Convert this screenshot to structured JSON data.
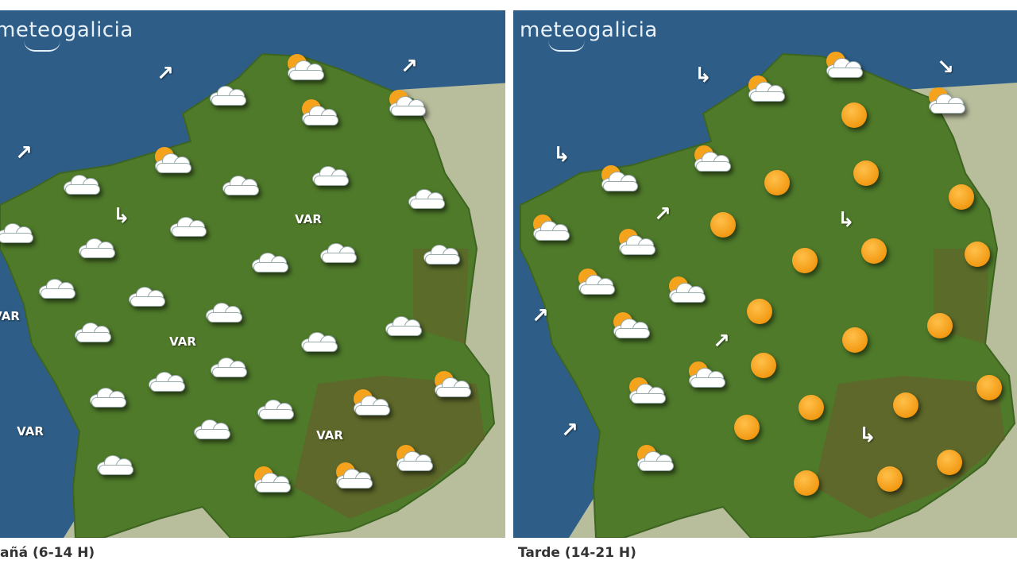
{
  "panels": [
    {
      "logo": "meteogalicia",
      "caption": "añá (6-14 H)",
      "icons": [
        "partly-cloudy",
        "partly-cloudy",
        "partly-cloudy",
        "partly-cloudy",
        "partly-cloudy",
        "partly-cloudy",
        "partly-cloudy",
        "partly-cloudy",
        "partly-cloudy",
        "cloudy",
        "cloudy",
        "cloudy",
        "cloudy",
        "cloudy",
        "cloudy",
        "cloudy",
        "cloudy",
        "cloudy",
        "cloudy",
        "cloudy",
        "cloudy",
        "cloudy",
        "cloudy",
        "cloudy",
        "cloudy",
        "cloudy",
        "cloudy",
        "cloudy",
        "cloudy",
        "cloudy",
        "cloudy",
        "cloudy"
      ],
      "winds": [
        "northeast",
        "northeast",
        "northeast",
        "east"
      ],
      "var_labels": [
        "VAR",
        "VAR",
        "VAR",
        "VAR",
        "VAR"
      ]
    },
    {
      "logo": "meteogalicia",
      "caption": "Tarde (14-21 H)",
      "icons": [
        "sunny",
        "sunny",
        "sunny",
        "sunny",
        "sunny",
        "sunny",
        "sunny",
        "sunny",
        "sunny",
        "sunny",
        "sunny",
        "sunny",
        "sunny",
        "sunny",
        "sunny",
        "sunny",
        "sunny",
        "sunny",
        "sunny",
        "partly-cloudy",
        "partly-cloudy",
        "partly-cloudy",
        "partly-cloudy",
        "partly-cloudy",
        "partly-cloudy",
        "partly-cloudy",
        "partly-cloudy",
        "partly-cloudy",
        "partly-cloudy",
        "partly-cloudy",
        "partly-cloudy",
        "partly-cloudy"
      ],
      "winds": [
        "east",
        "southeast",
        "east",
        "northeast",
        "east",
        "northeast",
        "northeast",
        "northeast",
        "east"
      ],
      "var_labels": []
    }
  ],
  "colors": {
    "sea": "#2e5e88",
    "land": "#4f7a2a",
    "neighbour_land": "#b8bd9c",
    "sun": "#f29a14"
  }
}
